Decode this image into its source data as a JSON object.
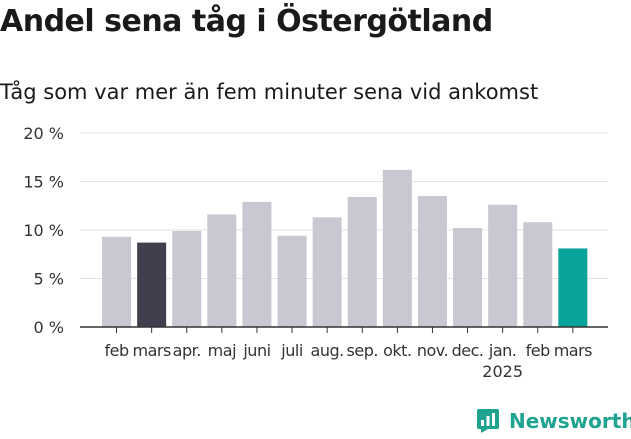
{
  "header": {
    "title": "Andel sena tåg i Östergötland",
    "subtitle": "Tåg som var mer än fem minuter sena vid ankomst"
  },
  "brand": {
    "name": "Newsworthy",
    "icon": "newsworthy-logo-icon"
  },
  "colors": {
    "bar": "#c8c7d2",
    "previous": "#413f4e",
    "current": "#0aa39b",
    "axis": "#333333",
    "grid": "#e3e3e3"
  },
  "chart_data": {
    "type": "bar",
    "categories": [
      "feb",
      "mars",
      "apr.",
      "maj",
      "juni",
      "juli",
      "aug.",
      "sep.",
      "okt.",
      "nov.",
      "dec.",
      "jan.",
      "feb",
      "mars"
    ],
    "year_label": "2025",
    "year_label_under_index": 11,
    "values": [
      9.3,
      8.7,
      9.9,
      11.6,
      12.9,
      9.4,
      11.3,
      13.4,
      16.2,
      13.5,
      10.2,
      12.6,
      10.8,
      8.1
    ],
    "highlight": {
      "1": "previous",
      "13": "current"
    },
    "ylim": [
      0,
      20
    ],
    "yticks": [
      0,
      5,
      10,
      15,
      20
    ],
    "ytick_labels": [
      "0 %",
      "5 %",
      "10 %",
      "15 %",
      "20 %"
    ],
    "xlabel": "",
    "ylabel": "",
    "grid": true
  }
}
